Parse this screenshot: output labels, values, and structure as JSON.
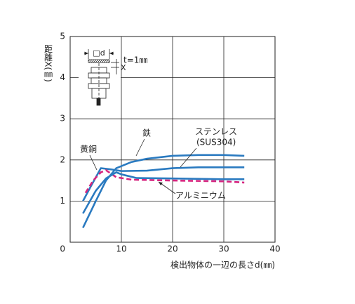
{
  "chart_data": {
    "type": "line",
    "y_label": "距離X(㎜)",
    "x_label": "検出物体の一辺の長さd(㎜)",
    "xlim": [
      0,
      40
    ],
    "xticks": [
      0,
      10,
      20,
      30,
      40
    ],
    "ylim": [
      0,
      5
    ],
    "yticks": [
      1,
      2,
      3,
      4,
      5
    ],
    "grid": true,
    "series": [
      {
        "name": "鉄",
        "color": "#2a7ac0",
        "dash": false,
        "x": [
          2.5,
          5,
          7,
          9,
          12,
          15,
          20,
          25,
          30,
          34
        ],
        "values": [
          0.35,
          1.0,
          1.5,
          1.8,
          1.95,
          2.03,
          2.1,
          2.12,
          2.12,
          2.1
        ]
      },
      {
        "name": "ステンレス",
        "color": "#2a7ac0",
        "dash": false,
        "x": [
          2.5,
          4,
          6,
          8,
          10,
          15,
          20,
          25,
          34
        ],
        "values": [
          1.0,
          1.35,
          1.8,
          1.77,
          1.73,
          1.74,
          1.8,
          1.82,
          1.82
        ]
      },
      {
        "name": "黄銅",
        "color": "#d6257f",
        "dash": true,
        "x": [
          3,
          4.5,
          6,
          7,
          9,
          12,
          20,
          30,
          34
        ],
        "values": [
          1.2,
          1.5,
          1.7,
          1.75,
          1.58,
          1.52,
          1.5,
          1.48,
          1.45
        ]
      },
      {
        "name": "アルミニウム",
        "color": "#2a7ac0",
        "dash": false,
        "x": [
          2.5,
          5,
          7,
          9,
          10,
          13,
          20,
          30,
          34
        ],
        "values": [
          0.7,
          1.25,
          1.55,
          1.7,
          1.65,
          1.56,
          1.55,
          1.53,
          1.53
        ]
      }
    ],
    "series_note": "(SUS304)",
    "inset": {
      "side": "□d",
      "thickness": "t=1㎜",
      "distance": "X"
    }
  }
}
